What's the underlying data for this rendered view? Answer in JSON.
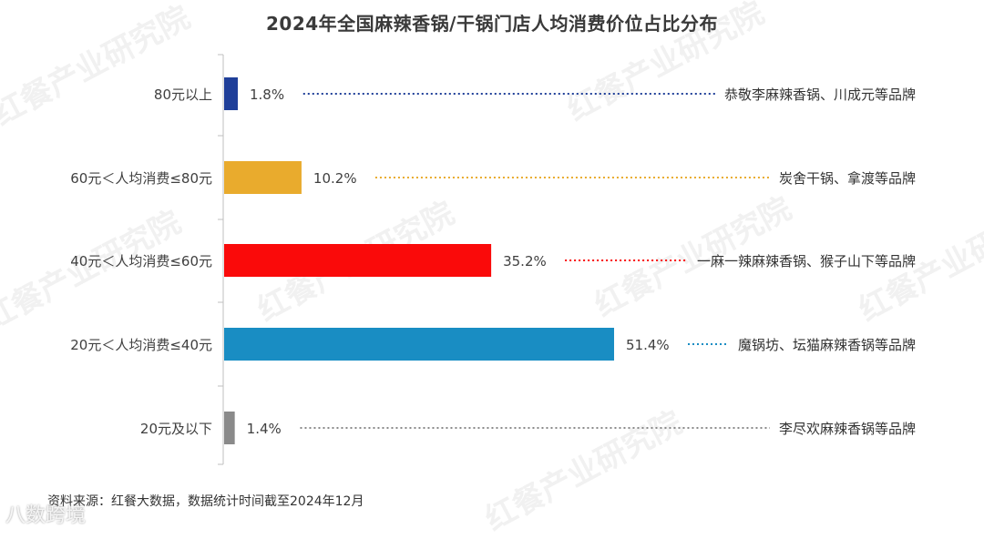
{
  "watermark_text": "红餐产业研究院",
  "chart_data": {
    "type": "bar",
    "orientation": "horizontal",
    "title": "2024年全国麻辣香锅/干锅门店人均消费价位占比分布",
    "categories": [
      "80元以上",
      "60元＜人均消费≤80元",
      "40元＜人均消费≤60元",
      "20元＜人均消费≤40元",
      "20元及以下"
    ],
    "values": [
      1.8,
      10.2,
      35.2,
      51.4,
      1.4
    ],
    "value_labels": [
      "1.8%",
      "10.2%",
      "35.2%",
      "51.4%",
      "1.4%"
    ],
    "brand_notes": [
      "恭敬李麻辣香锅、川成元等品牌",
      "炭舍干锅、拿渡等品牌",
      "一麻一辣麻辣香锅、猴子山下等品牌",
      "魔锅坊、坛猫麻辣香锅等品牌",
      "李尽欢麻辣香锅等品牌"
    ],
    "colors": [
      "#1f3f99",
      "#e9ab2d",
      "#fa0a0a",
      "#198dc3",
      "#8a8a8a"
    ],
    "xlim": [
      0,
      100
    ],
    "grid": false,
    "legend": "none"
  },
  "source_text": "资料来源：红餐大数据，数据统计时间截至2024年12月",
  "corner_mark": "八数跨境"
}
